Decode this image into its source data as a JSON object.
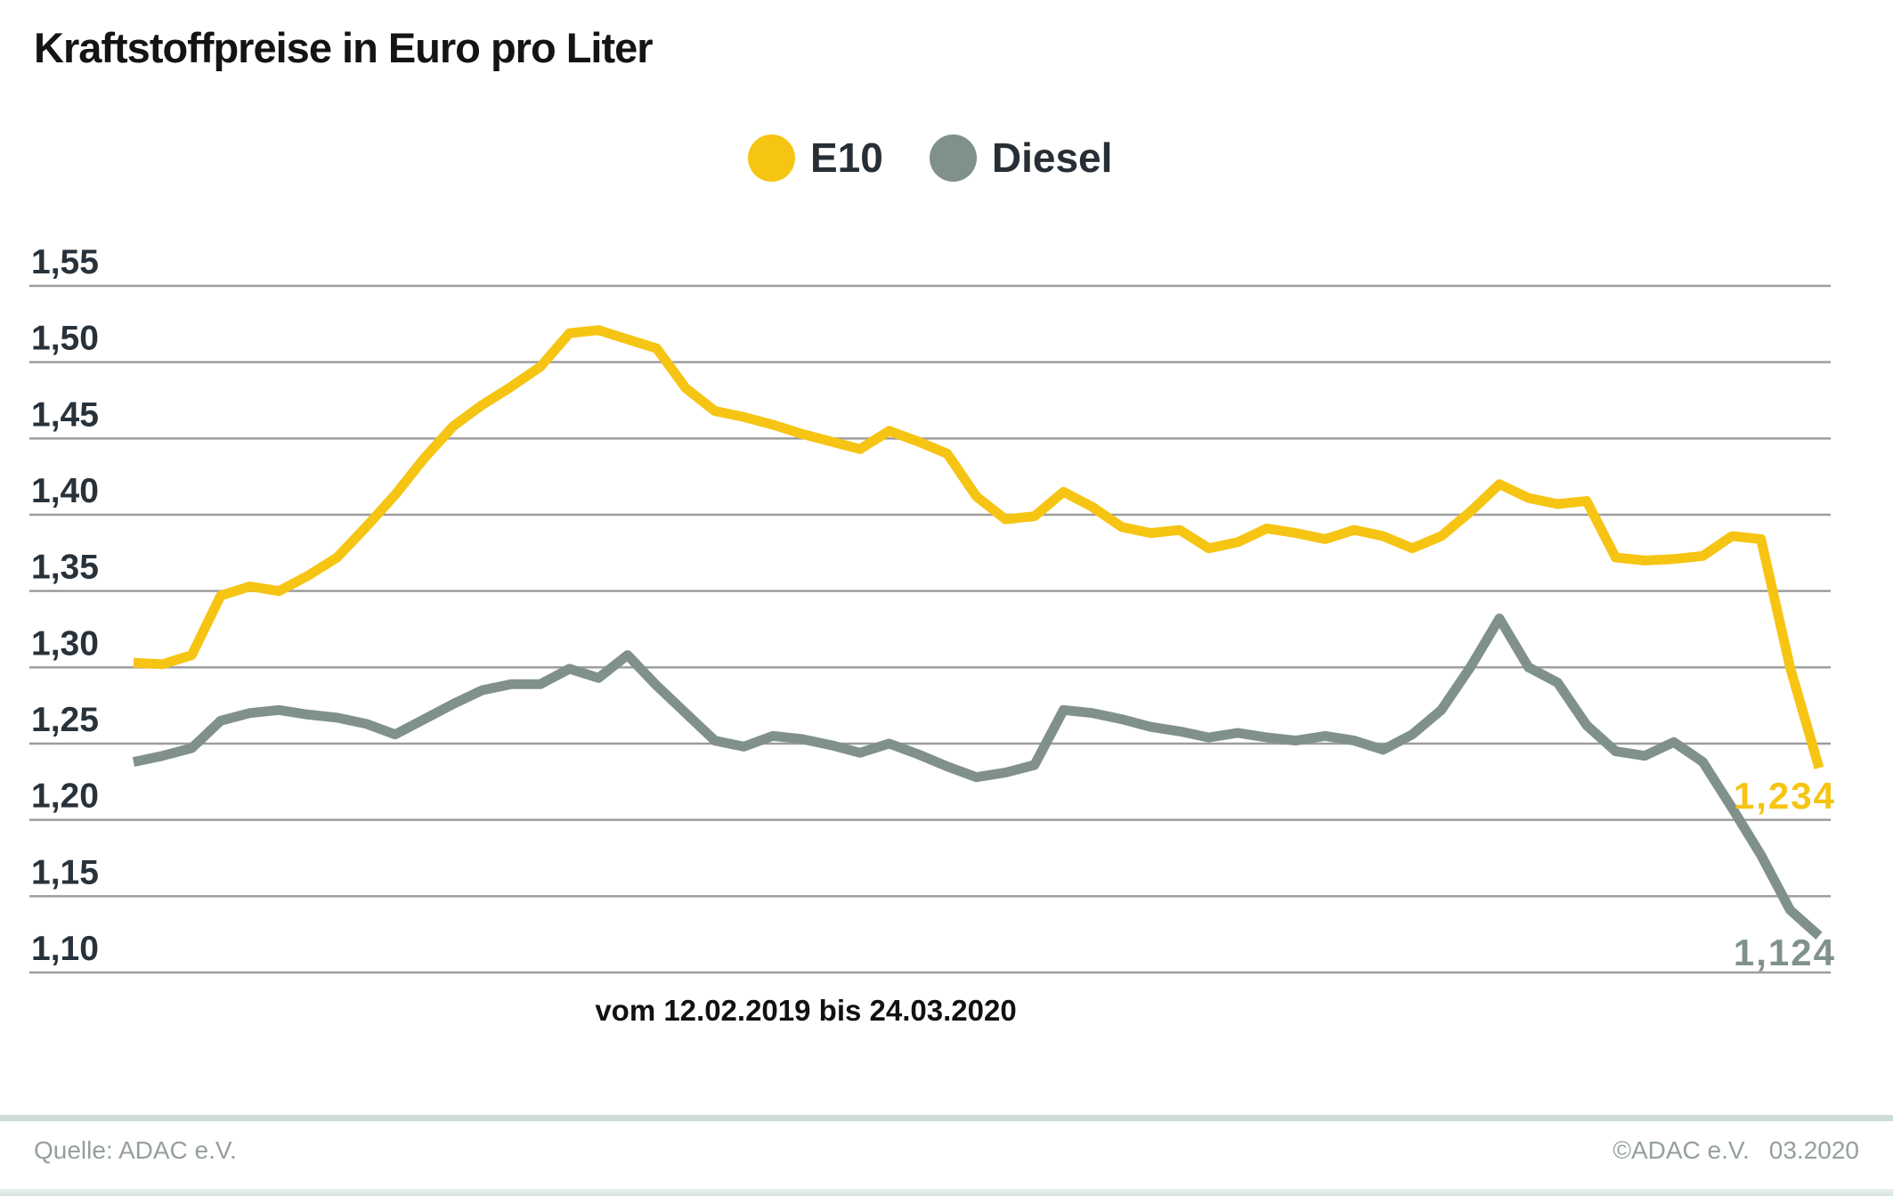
{
  "title": "Kraftstoffpreise in Euro pro Liter",
  "legend": {
    "e10": {
      "label": "E10",
      "color": "#f6c413"
    },
    "diesel": {
      "label": "Diesel",
      "color": "#80918c"
    }
  },
  "end_labels": {
    "e10": "1,234",
    "diesel": "1,124"
  },
  "caption": "vom 12.02.2019 bis 24.03.2020",
  "footer": {
    "source": "Quelle: ADAC e.V.",
    "copyright": "©ADAC e.V.",
    "date": "03.2020"
  },
  "chart_data": {
    "type": "line",
    "title": "Kraftstoffpreise in Euro pro Liter",
    "x_range": {
      "start": "12.02.2019",
      "end": "24.03.2020",
      "interval": "weekly"
    },
    "ylabel": "Euro pro Liter",
    "ylim": [
      1.1,
      1.55
    ],
    "grid": true,
    "legend_position": "top-center",
    "yticks": {
      "values": [
        1.55,
        1.5,
        1.45,
        1.4,
        1.35,
        1.3,
        1.25,
        1.2,
        1.15,
        1.1
      ],
      "labels": [
        "1,55",
        "1,50",
        "1,45",
        "1,40",
        "1,35",
        "1,30",
        "1,25",
        "1,20",
        "1,15",
        "1,10"
      ]
    },
    "series": [
      {
        "name": "E10",
        "color": "#f6c413",
        "last_value_label": "1,234",
        "values": [
          1.303,
          1.302,
          1.308,
          1.347,
          1.353,
          1.35,
          1.36,
          1.372,
          1.392,
          1.413,
          1.437,
          1.458,
          1.472,
          1.484,
          1.497,
          1.519,
          1.521,
          1.515,
          1.509,
          1.483,
          1.468,
          1.464,
          1.459,
          1.453,
          1.448,
          1.443,
          1.455,
          1.448,
          1.44,
          1.412,
          1.397,
          1.399,
          1.415,
          1.405,
          1.392,
          1.388,
          1.39,
          1.378,
          1.382,
          1.391,
          1.388,
          1.384,
          1.39,
          1.386,
          1.378,
          1.386,
          1.402,
          1.42,
          1.411,
          1.407,
          1.409,
          1.372,
          1.37,
          1.371,
          1.373,
          1.386,
          1.384,
          1.3,
          1.234
        ]
      },
      {
        "name": "Diesel",
        "color": "#80918c",
        "last_value_label": "1,124",
        "values": [
          1.238,
          1.242,
          1.247,
          1.265,
          1.27,
          1.272,
          1.269,
          1.267,
          1.263,
          1.256,
          1.266,
          1.276,
          1.285,
          1.289,
          1.289,
          1.299,
          1.293,
          1.308,
          1.288,
          1.27,
          1.252,
          1.248,
          1.255,
          1.253,
          1.249,
          1.244,
          1.25,
          1.243,
          1.235,
          1.228,
          1.231,
          1.236,
          1.272,
          1.27,
          1.266,
          1.261,
          1.258,
          1.254,
          1.257,
          1.254,
          1.252,
          1.255,
          1.252,
          1.246,
          1.256,
          1.272,
          1.3,
          1.332,
          1.3,
          1.29,
          1.262,
          1.245,
          1.242,
          1.251,
          1.238,
          1.208,
          1.177,
          1.141,
          1.124
        ]
      }
    ]
  },
  "style": {
    "grid_color": "#9d9d9d",
    "tick_text_color": "#28323b",
    "line_width": 11
  }
}
